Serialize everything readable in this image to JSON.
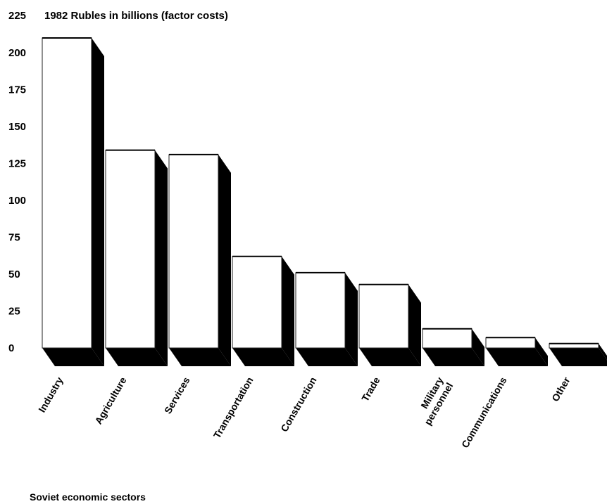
{
  "chart_data": {
    "type": "bar",
    "title": "1982 Rubles in billions (factor costs)",
    "xlabel": "Soviet economic sectors",
    "ylabel": "",
    "ylim": [
      0,
      225
    ],
    "yticks": [
      0,
      25,
      50,
      75,
      100,
      125,
      150,
      175,
      200,
      225
    ],
    "grid": false,
    "style": "3d-bars",
    "bar_face_color": "#ffffff",
    "bar_side_color": "#000000",
    "categories": [
      "Industry",
      "Agriculture",
      "Services",
      "Transportation",
      "Construction",
      "Trade",
      "Military personnel",
      "Communications",
      "Other"
    ],
    "category_lines": [
      [
        "Industry"
      ],
      [
        "Agriculture"
      ],
      [
        "Services"
      ],
      [
        "Transportation"
      ],
      [
        "Construction"
      ],
      [
        "Trade"
      ],
      [
        "Military",
        "personnel"
      ],
      [
        "Communications"
      ],
      [
        "Other"
      ]
    ],
    "values": [
      210,
      134,
      131,
      62,
      51,
      43,
      13,
      7,
      3
    ]
  }
}
